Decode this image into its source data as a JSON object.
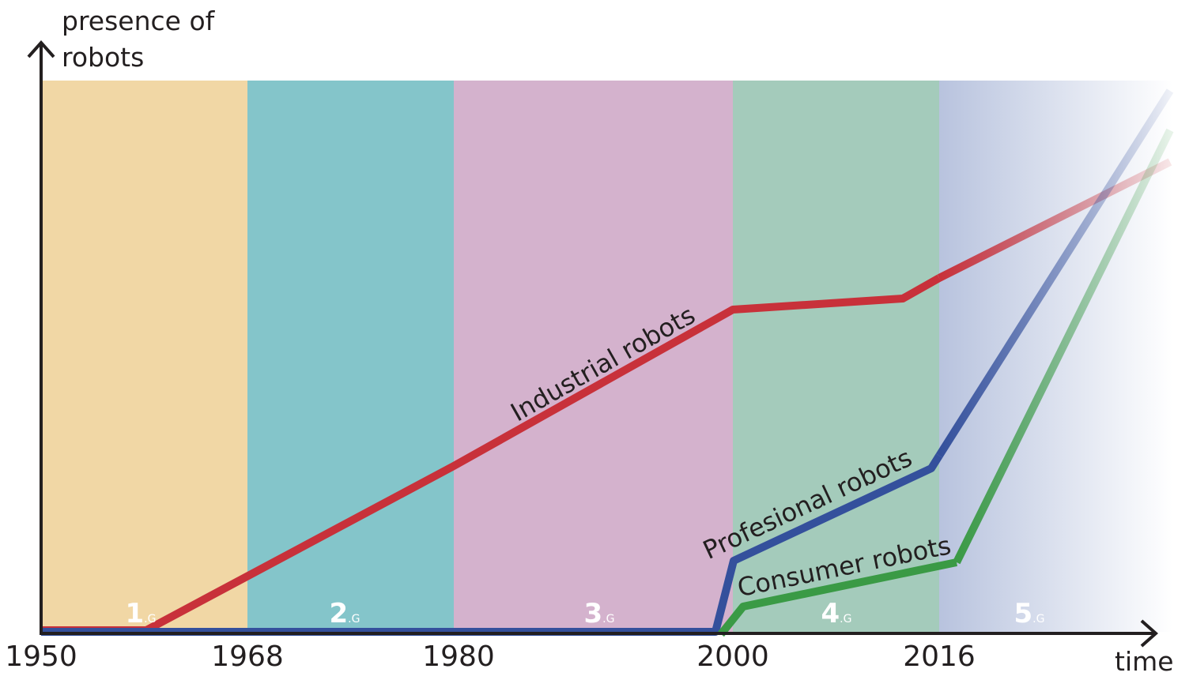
{
  "axes": {
    "y_label": [
      "presence of",
      "robots"
    ],
    "x_label": "time"
  },
  "years": [
    "1950",
    "1968",
    "1980",
    "2000",
    "2016"
  ],
  "eras": [
    {
      "number": "1",
      "suffix": ".G"
    },
    {
      "number": "2",
      "suffix": ".G"
    },
    {
      "number": "3",
      "suffix": ".G"
    },
    {
      "number": "4",
      "suffix": ".G"
    },
    {
      "number": "5",
      "suffix": ".G"
    }
  ],
  "lines": {
    "industrial": "Industrial robots",
    "professional": "Profesional robots",
    "consumer": "Consumer robots"
  }
}
